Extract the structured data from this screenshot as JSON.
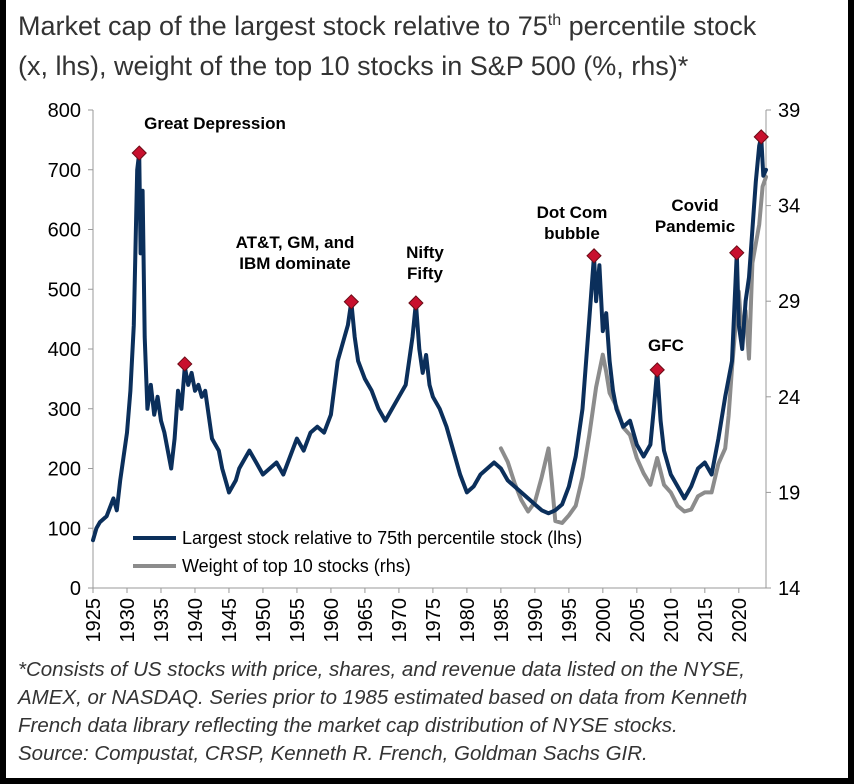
{
  "title": {
    "line1_prefix": "Market cap of the largest stock relative to 75",
    "line1_sup": "th",
    "line1_suffix": " percentile stock",
    "line2": "(x, lhs), weight of the top 10 stocks in S&P 500 (%, rhs)*"
  },
  "footnote": {
    "line1": "*Consists of US stocks with price, shares, and revenue data listed on the NYSE,",
    "line2": "AMEX, or NASDAQ. Series prior to 1985 estimated based on data from Kenneth",
    "line3": "French data library reflecting the market cap distribution of NYSE stocks.",
    "line4": "Source: Compustat, CRSP, Kenneth R. French, Goldman Sachs GIR."
  },
  "chart_data": {
    "type": "line",
    "xlim": [
      1925,
      2024
    ],
    "x_ticks": [
      "1925",
      "1930",
      "1935",
      "1940",
      "1945",
      "1950",
      "1955",
      "1960",
      "1965",
      "1970",
      "1975",
      "1980",
      "1985",
      "1990",
      "1995",
      "2000",
      "2005",
      "2010",
      "2015",
      "2020"
    ],
    "y_left": {
      "lim": [
        0,
        800
      ],
      "ticks": [
        "0",
        "100",
        "200",
        "300",
        "400",
        "500",
        "600",
        "700",
        "800"
      ]
    },
    "y_right": {
      "lim": [
        14,
        39
      ],
      "ticks": [
        "14",
        "19",
        "24",
        "29",
        "34",
        "39"
      ]
    },
    "grid": false,
    "legend_position": "bottom-left",
    "series": [
      {
        "name": "Largest stock relative to 75th percentile stock (lhs)",
        "axis": "left",
        "color": "#0b2f5b",
        "points": [
          [
            1925,
            80
          ],
          [
            1925.5,
            100
          ],
          [
            1926,
            110
          ],
          [
            1927,
            120
          ],
          [
            1928,
            150
          ],
          [
            1928.5,
            130
          ],
          [
            1929,
            180
          ],
          [
            1929.5,
            220
          ],
          [
            1930,
            260
          ],
          [
            1930.5,
            330
          ],
          [
            1931,
            440
          ],
          [
            1931.5,
            700
          ],
          [
            1931.8,
            728
          ],
          [
            1932,
            560
          ],
          [
            1932.3,
            665
          ],
          [
            1932.6,
            420
          ],
          [
            1933,
            300
          ],
          [
            1933.5,
            340
          ],
          [
            1934,
            290
          ],
          [
            1934.5,
            320
          ],
          [
            1935,
            280
          ],
          [
            1935.5,
            260
          ],
          [
            1936,
            230
          ],
          [
            1936.5,
            200
          ],
          [
            1937,
            250
          ],
          [
            1937.5,
            330
          ],
          [
            1938,
            300
          ],
          [
            1938.5,
            370
          ],
          [
            1939,
            340
          ],
          [
            1939.5,
            360
          ],
          [
            1940,
            330
          ],
          [
            1940.5,
            340
          ],
          [
            1941,
            320
          ],
          [
            1941.5,
            330
          ],
          [
            1942,
            290
          ],
          [
            1942.5,
            250
          ],
          [
            1943,
            240
          ],
          [
            1943.5,
            230
          ],
          [
            1944,
            200
          ],
          [
            1944.5,
            180
          ],
          [
            1945,
            160
          ],
          [
            1945.5,
            170
          ],
          [
            1946,
            180
          ],
          [
            1946.5,
            200
          ],
          [
            1947,
            210
          ],
          [
            1948,
            230
          ],
          [
            1949,
            210
          ],
          [
            1950,
            190
          ],
          [
            1951,
            200
          ],
          [
            1952,
            210
          ],
          [
            1953,
            190
          ],
          [
            1954,
            220
          ],
          [
            1955,
            250
          ],
          [
            1956,
            230
          ],
          [
            1957,
            260
          ],
          [
            1958,
            270
          ],
          [
            1959,
            260
          ],
          [
            1960,
            290
          ],
          [
            1961,
            380
          ],
          [
            1962,
            420
          ],
          [
            1962.5,
            440
          ],
          [
            1963,
            479
          ],
          [
            1963.5,
            420
          ],
          [
            1964,
            380
          ],
          [
            1965,
            350
          ],
          [
            1966,
            330
          ],
          [
            1967,
            300
          ],
          [
            1968,
            280
          ],
          [
            1969,
            300
          ],
          [
            1970,
            320
          ],
          [
            1971,
            340
          ],
          [
            1971.5,
            380
          ],
          [
            1972,
            420
          ],
          [
            1972.5,
            477
          ],
          [
            1973,
            400
          ],
          [
            1973.5,
            360
          ],
          [
            1974,
            390
          ],
          [
            1974.5,
            340
          ],
          [
            1975,
            320
          ],
          [
            1976,
            300
          ],
          [
            1977,
            270
          ],
          [
            1978,
            230
          ],
          [
            1979,
            190
          ],
          [
            1980,
            160
          ],
          [
            1981,
            170
          ],
          [
            1982,
            190
          ],
          [
            1983,
            200
          ],
          [
            1984,
            210
          ],
          [
            1985,
            200
          ],
          [
            1986,
            180
          ],
          [
            1987,
            170
          ],
          [
            1988,
            160
          ],
          [
            1989,
            150
          ],
          [
            1990,
            140
          ],
          [
            1991,
            130
          ],
          [
            1992,
            125
          ],
          [
            1993,
            130
          ],
          [
            1994,
            140
          ],
          [
            1995,
            170
          ],
          [
            1996,
            220
          ],
          [
            1997,
            300
          ],
          [
            1998,
            450
          ],
          [
            1998.7,
            556
          ],
          [
            1999,
            480
          ],
          [
            1999.5,
            540
          ],
          [
            2000,
            430
          ],
          [
            2000.5,
            460
          ],
          [
            2001,
            380
          ],
          [
            2001.5,
            330
          ],
          [
            2002,
            300
          ],
          [
            2003,
            270
          ],
          [
            2004,
            280
          ],
          [
            2005,
            240
          ],
          [
            2006,
            220
          ],
          [
            2007,
            240
          ],
          [
            2007.5,
            300
          ],
          [
            2008,
            365
          ],
          [
            2008.5,
            280
          ],
          [
            2009,
            230
          ],
          [
            2010,
            190
          ],
          [
            2011,
            170
          ],
          [
            2012,
            150
          ],
          [
            2013,
            170
          ],
          [
            2014,
            200
          ],
          [
            2015,
            210
          ],
          [
            2016,
            190
          ],
          [
            2017,
            250
          ],
          [
            2018,
            320
          ],
          [
            2019,
            380
          ],
          [
            2019.7,
            561
          ],
          [
            2020,
            440
          ],
          [
            2020.5,
            400
          ],
          [
            2021,
            480
          ],
          [
            2021.5,
            520
          ],
          [
            2022,
            600
          ],
          [
            2022.5,
            680
          ],
          [
            2023,
            740
          ],
          [
            2023.3,
            755
          ],
          [
            2023.6,
            690
          ],
          [
            2024,
            700
          ]
        ]
      },
      {
        "name": "Weight of top 10 stocks (rhs)",
        "axis": "right",
        "color": "#8c8c8c",
        "points": [
          [
            1985,
            21.3
          ],
          [
            1986,
            20.6
          ],
          [
            1987,
            19.5
          ],
          [
            1988,
            18.6
          ],
          [
            1989,
            18.0
          ],
          [
            1990,
            18.5
          ],
          [
            1991,
            19.8
          ],
          [
            1992,
            21.3
          ],
          [
            1992.5,
            19.5
          ],
          [
            1993,
            17.5
          ],
          [
            1994,
            17.4
          ],
          [
            1995,
            17.8
          ],
          [
            1996,
            18.3
          ],
          [
            1997,
            19.8
          ],
          [
            1998,
            22.0
          ],
          [
            1999,
            24.5
          ],
          [
            2000,
            26.2
          ],
          [
            2000.5,
            25.3
          ],
          [
            2001,
            24.2
          ],
          [
            2002,
            23.5
          ],
          [
            2003,
            22.4
          ],
          [
            2004,
            22.0
          ],
          [
            2005,
            20.8
          ],
          [
            2006,
            20.0
          ],
          [
            2007,
            19.4
          ],
          [
            2008,
            20.8
          ],
          [
            2009,
            19.4
          ],
          [
            2010,
            19.0
          ],
          [
            2011,
            18.3
          ],
          [
            2012,
            18.0
          ],
          [
            2013,
            18.1
          ],
          [
            2014,
            18.8
          ],
          [
            2015,
            19.0
          ],
          [
            2016,
            19.0
          ],
          [
            2017,
            20.5
          ],
          [
            2018,
            21.3
          ],
          [
            2018.5,
            23.0
          ],
          [
            2019,
            25.5
          ],
          [
            2019.7,
            28.5
          ],
          [
            2020,
            29.5
          ],
          [
            2020.5,
            27.0
          ],
          [
            2021,
            28.5
          ],
          [
            2021.5,
            26.0
          ],
          [
            2022,
            31.0
          ],
          [
            2022.5,
            32.0
          ],
          [
            2023,
            33.0
          ],
          [
            2023.5,
            35.0
          ],
          [
            2024,
            35.5
          ]
        ]
      }
    ],
    "markers": [
      {
        "x": 1931.8,
        "y": 728
      },
      {
        "x": 1938.5,
        "y": 375
      },
      {
        "x": 1963,
        "y": 479
      },
      {
        "x": 1972.5,
        "y": 477
      },
      {
        "x": 1998.7,
        "y": 556
      },
      {
        "x": 2008,
        "y": 365
      },
      {
        "x": 2019.7,
        "y": 561
      },
      {
        "x": 2023.3,
        "y": 755
      }
    ],
    "annotations": [
      {
        "lines": [
          "Great Depression"
        ]
      },
      {
        "lines": [
          "AT&T, GM, and",
          "IBM dominate"
        ]
      },
      {
        "lines": [
          "Nifty",
          "Fifty"
        ]
      },
      {
        "lines": [
          "Dot Com",
          "bubble"
        ]
      },
      {
        "lines": [
          "GFC"
        ]
      },
      {
        "lines": [
          "Covid",
          "Pandemic"
        ]
      }
    ]
  }
}
